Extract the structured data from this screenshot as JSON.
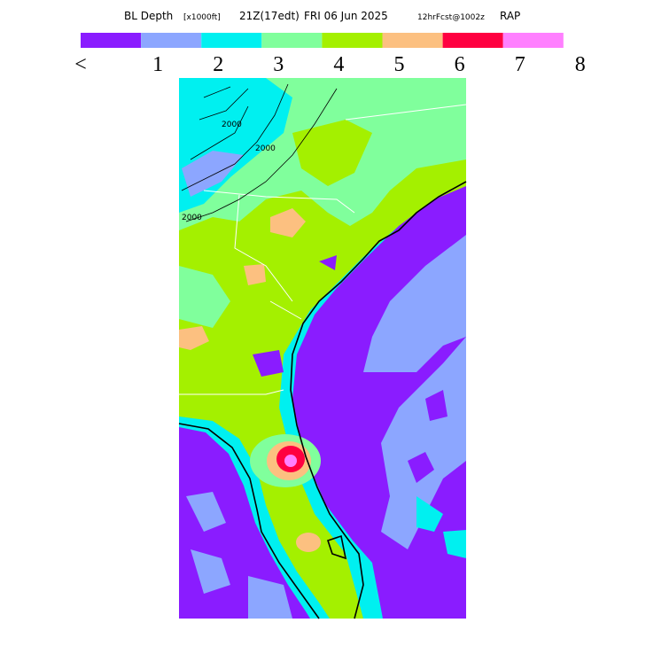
{
  "header": {
    "title": [
      "BL Depth",
      "[x1000ft]",
      "21Z(17edt)",
      "FRI 06 Jun 2025",
      "12hrFcst@1002z",
      "RAP"
    ]
  },
  "legend": {
    "colors": [
      "#8a1cff",
      "#8ca6ff",
      "#00f0f0",
      "#80ff9c",
      "#a4f000",
      "#fcc080",
      "#ff0040",
      "#ff80ff"
    ],
    "labels": [
      "<",
      "1",
      "2",
      "3",
      "4",
      "5",
      "6",
      "7",
      "8"
    ]
  },
  "map": {
    "contour_labels": [
      "2000",
      "2000",
      "2000"
    ]
  }
}
